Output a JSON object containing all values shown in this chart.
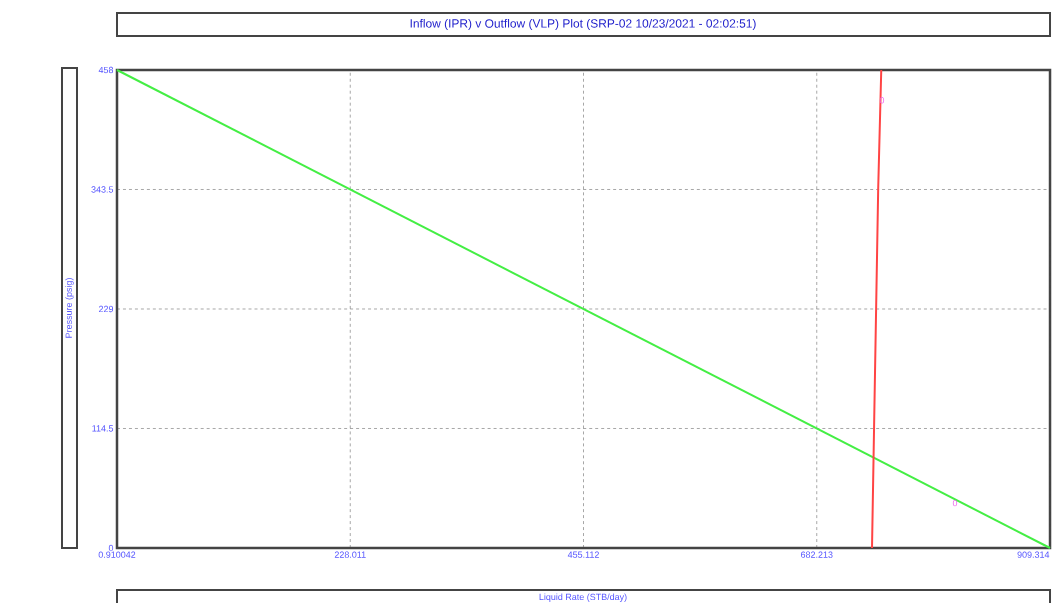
{
  "chart_data": {
    "type": "line",
    "title": "Inflow (IPR) v Outflow (VLP) Plot (SRP-02 10/23/2021 - 02:02:51)",
    "xlabel": "Liquid Rate  (STB/day)",
    "ylabel": "Pressure  (psig)",
    "series": [
      {
        "color": "#44ee44",
        "x": [
          0.910042,
          909.314
        ],
        "values": [
          458,
          0
        ]
      },
      {
        "color": "#ff4444",
        "x": [
          736,
          738,
          740,
          742,
          745
        ],
        "values": [
          0,
          115,
          229,
          343,
          458
        ]
      }
    ],
    "annotations": [
      {
        "text": "0",
        "x": 745.7,
        "y": 429
      },
      {
        "text": "0",
        "x": 816.8,
        "y": 43
      }
    ],
    "xlim": [
      0.910042,
      909.314
    ],
    "xticks": [
      0.910042,
      228.011,
      455.112,
      682.213,
      909.314
    ],
    "ylim": [
      0,
      458
    ],
    "yticks": [
      0,
      114.5,
      229,
      343.5,
      458
    ],
    "grid": true,
    "line_style": "solid",
    "marker": "none"
  }
}
